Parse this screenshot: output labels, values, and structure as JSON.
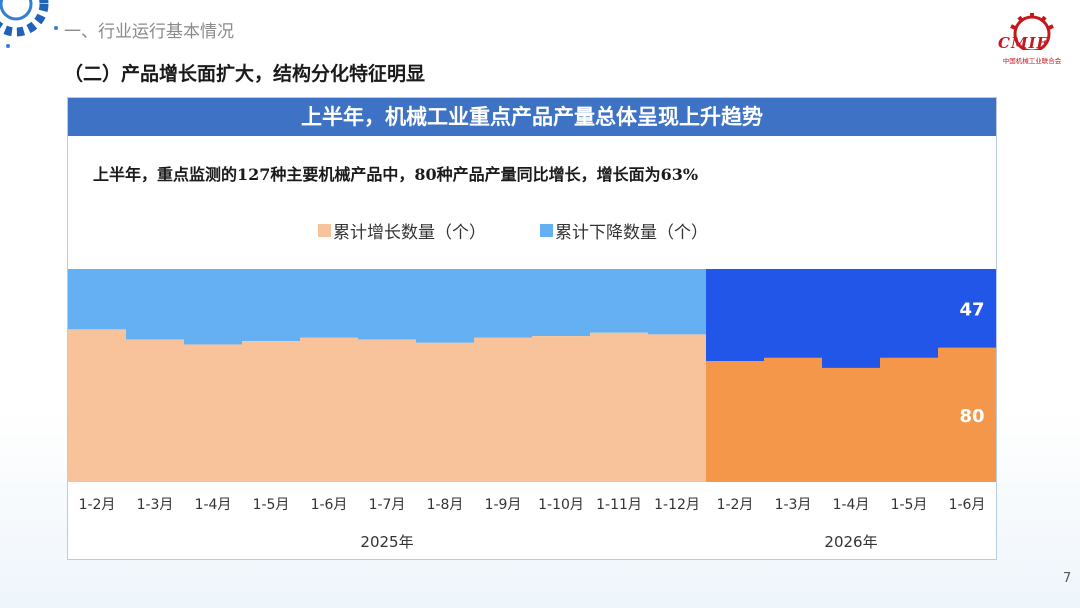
{
  "header": {
    "section_title": "一、行业运行基本情况",
    "sub_title": "（二）产品增长面扩大，结构分化特征明显"
  },
  "logo": {
    "text": "CMIF",
    "subtitle": "中国机械工业联合会"
  },
  "panel": {
    "header": "上半年，机械工业重点产品产量总体呈现上升趋势",
    "highlight": "上半年，重点监测的127种主要机械产品中，80种产品产量同比增长，增长面为63%"
  },
  "colors": {
    "increase_2025": "#f8c39b",
    "decrease_2025": "#64b0f2",
    "increase_2026": "#f4974b",
    "decrease_2026": "#2156e8",
    "header_bg": "#3e72c4"
  },
  "chart_data": {
    "type": "area",
    "stacked": true,
    "ylim": [
      0,
      127
    ],
    "categories": [
      "1-2月",
      "1-3月",
      "1-4月",
      "1-5月",
      "1-6月",
      "1-7月",
      "1-8月",
      "1-9月",
      "1-10月",
      "1-11月",
      "1-12月",
      "1-2月",
      "1-3月",
      "1-4月",
      "1-5月",
      "1-6月"
    ],
    "groups": [
      {
        "label": "2025年",
        "start": 0,
        "end": 10
      },
      {
        "label": "2026年",
        "start": 11,
        "end": 15
      }
    ],
    "series": [
      {
        "name": "累计增长数量（个）",
        "values": [
          91,
          85,
          82,
          84,
          86,
          85,
          83,
          86,
          87,
          89,
          88,
          72,
          74,
          68,
          74,
          80
        ]
      },
      {
        "name": "累计下降数量（个）",
        "values": [
          36,
          42,
          45,
          43,
          41,
          42,
          44,
          41,
          40,
          38,
          39,
          55,
          53,
          59,
          53,
          47
        ]
      }
    ],
    "data_labels": [
      {
        "series": 1,
        "index": 15,
        "text": "47"
      },
      {
        "series": 0,
        "index": 15,
        "text": "80"
      }
    ],
    "legend_position": "top-center",
    "grid": false
  },
  "page_number": "7"
}
